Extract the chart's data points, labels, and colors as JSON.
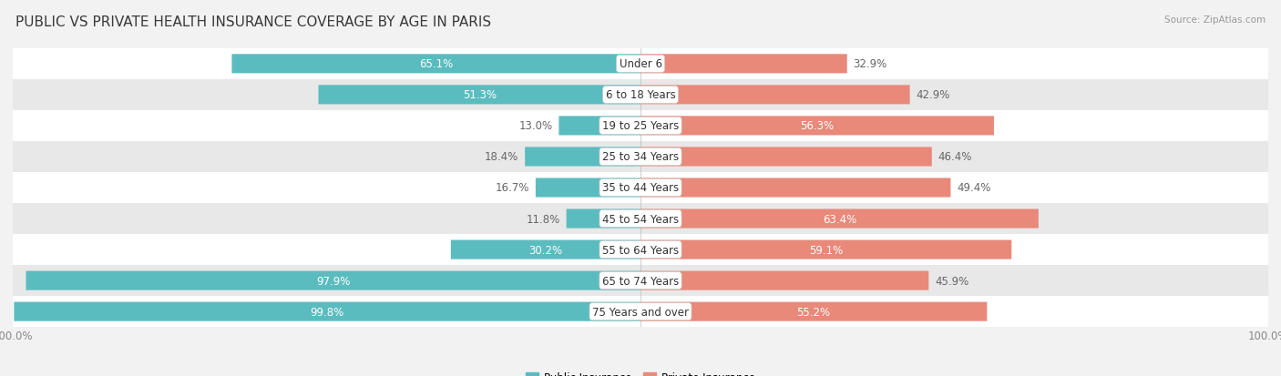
{
  "title": "PUBLIC VS PRIVATE HEALTH INSURANCE COVERAGE BY AGE IN PARIS",
  "source": "Source: ZipAtlas.com",
  "categories": [
    "Under 6",
    "6 to 18 Years",
    "19 to 25 Years",
    "25 to 34 Years",
    "35 to 44 Years",
    "45 to 54 Years",
    "55 to 64 Years",
    "65 to 74 Years",
    "75 Years and over"
  ],
  "public_values": [
    65.1,
    51.3,
    13.0,
    18.4,
    16.7,
    11.8,
    30.2,
    97.9,
    99.8
  ],
  "private_values": [
    32.9,
    42.9,
    56.3,
    46.4,
    49.4,
    63.4,
    59.1,
    45.9,
    55.2
  ],
  "public_color": "#5bbcbf",
  "private_color": "#e8897a",
  "background_color": "#f2f2f2",
  "bar_bg_even": "#ffffff",
  "bar_bg_odd": "#e8e8e8",
  "title_fontsize": 11,
  "label_fontsize": 8.5,
  "category_fontsize": 8.5,
  "legend_fontsize": 8.5,
  "source_fontsize": 7.5,
  "public_inside_threshold": 25,
  "private_inside_threshold": 55
}
